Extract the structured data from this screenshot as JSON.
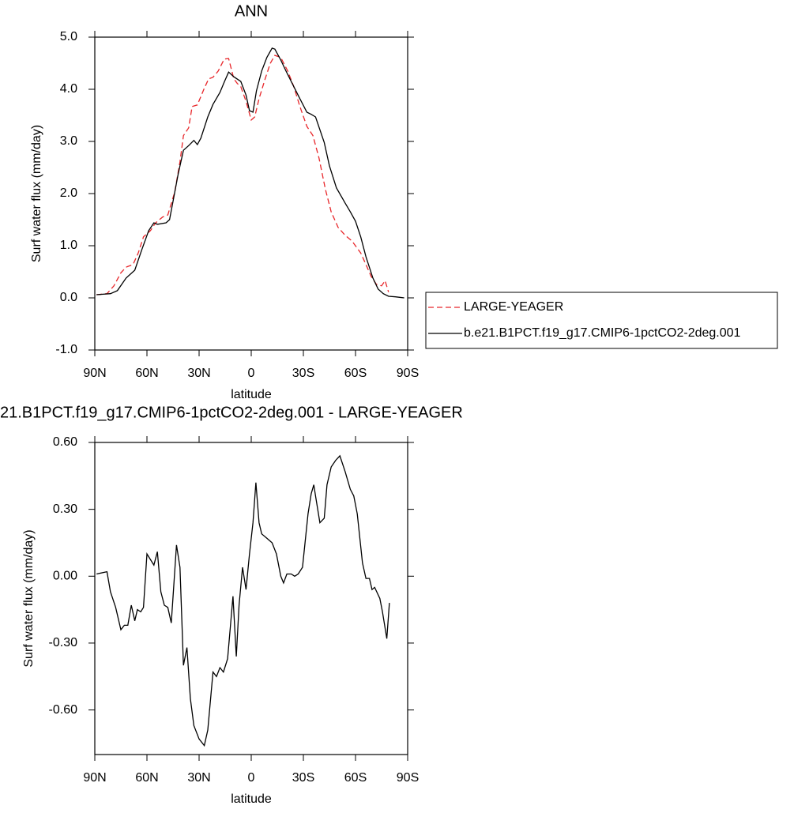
{
  "chart_data": [
    {
      "type": "line",
      "title": "ANN",
      "xlabel": "latitude",
      "ylabel": "Surf water flux (mm/day)",
      "xlim": [
        90,
        -90
      ],
      "ylim": [
        -1,
        5
      ],
      "xticks": [
        {
          "value": 90,
          "label": "90N"
        },
        {
          "value": 60,
          "label": "60N"
        },
        {
          "value": 30,
          "label": "30N"
        },
        0,
        {
          "value": -30,
          "label": "30S"
        },
        {
          "value": -60,
          "label": "60S"
        },
        {
          "value": -90,
          "label": "90S"
        }
      ],
      "yticks": [
        {
          "value": -1,
          "label": "-1.0"
        },
        {
          "value": 0,
          "label": "0.0"
        },
        {
          "value": 1,
          "label": "1.0"
        },
        {
          "value": 2,
          "label": "2.0"
        },
        {
          "value": 3,
          "label": "3.0"
        },
        {
          "value": 4,
          "label": "4.0"
        },
        {
          "value": 5,
          "label": "5.0"
        }
      ],
      "legend": "right",
      "series": [
        {
          "name": "LARGE-YEAGER",
          "color": "#e8262a",
          "dashed": true,
          "x": [
            89,
            83,
            79,
            75,
            72,
            68,
            65,
            62,
            58,
            55,
            51,
            48,
            44,
            41,
            39,
            36,
            34,
            31,
            27,
            24.5,
            22,
            19,
            15.5,
            13,
            10,
            8,
            6,
            3,
            0,
            -2,
            -4.5,
            -8,
            -11,
            -13.6,
            -17,
            -21,
            -24.5,
            -28,
            -32,
            -35.5,
            -39,
            -42.7,
            -46,
            -50,
            -54,
            -58,
            -63,
            -66,
            -69,
            -72,
            -75,
            -77,
            -79
          ],
          "values": [
            0.06,
            0.08,
            0.23,
            0.48,
            0.59,
            0.64,
            0.86,
            1.17,
            1.29,
            1.44,
            1.55,
            1.59,
            2.03,
            2.61,
            3.11,
            3.26,
            3.67,
            3.7,
            4.02,
            4.2,
            4.23,
            4.35,
            4.58,
            4.59,
            4.2,
            4.11,
            4.05,
            3.77,
            3.41,
            3.47,
            3.82,
            4.2,
            4.5,
            4.65,
            4.61,
            4.35,
            4.05,
            3.67,
            3.29,
            3.11,
            2.68,
            2.08,
            1.65,
            1.35,
            1.2,
            1.09,
            0.86,
            0.64,
            0.41,
            0.26,
            0.23,
            0.33,
            0.11
          ]
        },
        {
          "name": "b.e21.B1PCT.f19_g17.CMIP6-1pctCO2-2deg.001",
          "color": "#000000",
          "dashed": false,
          "x": [
            89,
            81,
            77,
            72,
            67,
            63,
            59,
            56,
            54,
            49,
            47,
            45,
            42,
            39,
            36,
            33,
            31,
            29,
            25,
            22,
            18,
            15.5,
            13,
            10,
            6,
            3,
            1,
            -1,
            -3,
            -6,
            -9,
            -12,
            -13.6,
            -17,
            -20,
            -24.5,
            -28,
            -32,
            -34.5,
            -37,
            -42,
            -45,
            -49,
            -54,
            -57,
            -60,
            -63,
            -66,
            -70,
            -73,
            -76,
            -79,
            -83,
            -88
          ],
          "values": [
            0.06,
            0.08,
            0.14,
            0.38,
            0.53,
            0.92,
            1.29,
            1.44,
            1.41,
            1.44,
            1.5,
            1.85,
            2.38,
            2.83,
            2.92,
            3.02,
            2.94,
            3.06,
            3.47,
            3.71,
            3.94,
            4.14,
            4.33,
            4.24,
            4.15,
            3.89,
            3.59,
            3.56,
            3.97,
            4.35,
            4.61,
            4.79,
            4.77,
            4.56,
            4.35,
            4.05,
            3.82,
            3.56,
            3.52,
            3.47,
            2.98,
            2.53,
            2.11,
            1.82,
            1.65,
            1.47,
            1.17,
            0.79,
            0.38,
            0.17,
            0.08,
            0.03,
            0.02,
            0.0
          ]
        }
      ]
    },
    {
      "type": "line",
      "title": "21.B1PCT.f19_g17.CMIP6-1pctCO2-2deg.001 - LARGE-YEAGER",
      "xlabel": "latitude",
      "ylabel": "Surf water flux (mm/day)",
      "xlim": [
        90,
        -90
      ],
      "ylim": [
        -0.8,
        0.6
      ],
      "xticks": [
        {
          "value": 90,
          "label": "90N"
        },
        {
          "value": 60,
          "label": "60N"
        },
        {
          "value": 30,
          "label": "30N"
        },
        0,
        {
          "value": -30,
          "label": "30S"
        },
        {
          "value": -60,
          "label": "60S"
        },
        {
          "value": -90,
          "label": "90S"
        }
      ],
      "yticks": [
        {
          "value": -0.6,
          "label": "-0.60"
        },
        {
          "value": -0.3,
          "label": "-0.30"
        },
        {
          "value": 0,
          "label": "0.00"
        },
        {
          "value": 0.3,
          "label": "0.30"
        },
        {
          "value": 0.6,
          "label": "0.60"
        }
      ],
      "color": "#000000",
      "x": [
        89,
        83,
        81,
        78,
        75,
        73,
        71,
        69,
        67,
        65.5,
        63.6,
        62,
        60,
        56,
        54,
        52,
        50,
        48,
        46,
        43,
        41,
        39,
        37,
        35,
        33,
        30,
        27,
        25,
        22,
        20,
        18,
        16,
        13.6,
        10.5,
        8.6,
        7,
        5,
        3,
        1,
        -1,
        -2.7,
        -4.5,
        -6,
        -9,
        -12,
        -14.5,
        -17,
        -18.6,
        -20.5,
        -23,
        -25,
        -27,
        -29.5,
        -32.7,
        -34.5,
        -36,
        -37,
        -39.5,
        -42,
        -43.6,
        -46,
        -48.6,
        -51,
        -54,
        -57,
        -59,
        -61,
        -64,
        -66,
        -68,
        -69.5,
        -71,
        -74,
        -75.5,
        -78,
        -79.5
      ],
      "values": [
        0.01,
        0.02,
        -0.07,
        -0.14,
        -0.24,
        -0.22,
        -0.22,
        -0.13,
        -0.2,
        -0.15,
        -0.16,
        -0.14,
        0.1,
        0.05,
        0.11,
        -0.07,
        -0.13,
        -0.14,
        -0.21,
        0.14,
        0.04,
        -0.4,
        -0.32,
        -0.55,
        -0.67,
        -0.73,
        -0.76,
        -0.69,
        -0.43,
        -0.45,
        -0.41,
        -0.43,
        -0.37,
        -0.09,
        -0.36,
        -0.13,
        0.04,
        -0.06,
        0.1,
        0.24,
        0.42,
        0.24,
        0.19,
        0.17,
        0.15,
        0.1,
        0.0,
        -0.03,
        0.01,
        0.01,
        0.0,
        0.01,
        0.04,
        0.28,
        0.37,
        0.41,
        0.36,
        0.24,
        0.26,
        0.41,
        0.49,
        0.52,
        0.54,
        0.47,
        0.39,
        0.36,
        0.28,
        0.06,
        -0.01,
        -0.01,
        -0.06,
        -0.05,
        -0.1,
        -0.16,
        -0.28,
        -0.12
      ]
    }
  ]
}
